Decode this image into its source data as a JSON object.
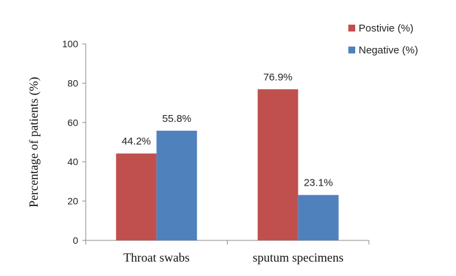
{
  "chart_data": {
    "type": "bar",
    "categories": [
      "Throat swabs",
      "sputum specimens"
    ],
    "series": [
      {
        "name": "Postivie (%)",
        "values": [
          44.2,
          76.9
        ],
        "labels": [
          "44.2%",
          "76.9%"
        ],
        "color": "#c0504d"
      },
      {
        "name": "Negative (%)",
        "values": [
          55.8,
          23.1
        ],
        "labels": [
          "55.8%",
          "23.1%"
        ],
        "color": "#4f81bd"
      }
    ],
    "ylabel": "Percentage of patients (%)",
    "xlabel": "",
    "ylim": [
      0,
      100
    ],
    "yticks": [
      0,
      20,
      40,
      60,
      80,
      100
    ],
    "grid": false,
    "legend_position": "top-right"
  }
}
